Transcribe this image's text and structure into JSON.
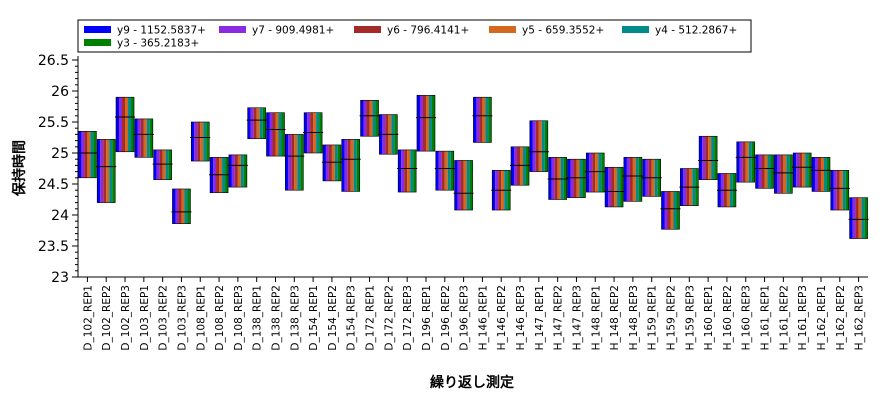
{
  "chart_data": {
    "type": "box",
    "ylabel": "保持時間",
    "xlabel": "繰り返し測定",
    "ylim": [
      23,
      26.5
    ],
    "yticks": [
      23,
      23.5,
      24,
      24.5,
      25,
      25.5,
      26,
      26.5
    ],
    "ytick_labels": [
      "23",
      "23.5",
      "24",
      "24.5",
      "25",
      "25.5",
      "26",
      "26.5"
    ],
    "legend_position": "top",
    "series": [
      {
        "name": "y9 - 1152.5837+",
        "color": "#0000ff"
      },
      {
        "name": "y7 - 909.4981+",
        "color": "#8a2be2"
      },
      {
        "name": "y6 - 796.4141+",
        "color": "#a52a2a"
      },
      {
        "name": "y5 - 659.3552+",
        "color": "#d2691e"
      },
      {
        "name": "y4 - 512.2867+",
        "color": "#008b8b"
      },
      {
        "name": "y3 - 365.2183+",
        "color": "#008000"
      }
    ],
    "categories": [
      {
        "label": "D_102_REP1",
        "low": 24.6,
        "high": 25.35,
        "median": 25.0
      },
      {
        "label": "D_102_REP2",
        "low": 24.2,
        "high": 25.22,
        "median": 24.78
      },
      {
        "label": "D_102_REP3",
        "low": 25.02,
        "high": 25.9,
        "median": 25.58
      },
      {
        "label": "D_103_REP1",
        "low": 24.93,
        "high": 25.55,
        "median": 25.3
      },
      {
        "label": "D_103_REP2",
        "low": 24.57,
        "high": 25.05,
        "median": 24.82
      },
      {
        "label": "D_103_REP3",
        "low": 23.86,
        "high": 24.42,
        "median": 24.05
      },
      {
        "label": "D_108_REP1",
        "low": 24.87,
        "high": 25.5,
        "median": 25.25
      },
      {
        "label": "D_108_REP2",
        "low": 24.36,
        "high": 24.93,
        "median": 24.65
      },
      {
        "label": "D_108_REP3",
        "low": 24.45,
        "high": 24.97,
        "median": 24.8
      },
      {
        "label": "D_138_REP1",
        "low": 25.23,
        "high": 25.73,
        "median": 25.53
      },
      {
        "label": "D_138_REP2",
        "low": 24.95,
        "high": 25.65,
        "median": 25.38
      },
      {
        "label": "D_138_REP3",
        "low": 24.4,
        "high": 25.3,
        "median": 24.95
      },
      {
        "label": "D_154_REP1",
        "low": 25.0,
        "high": 25.65,
        "median": 25.33
      },
      {
        "label": "D_154_REP2",
        "low": 24.55,
        "high": 25.13,
        "median": 24.85
      },
      {
        "label": "D_154_REP3",
        "low": 24.38,
        "high": 25.22,
        "median": 24.9
      },
      {
        "label": "D_172_REP1",
        "low": 25.27,
        "high": 25.85,
        "median": 25.6
      },
      {
        "label": "D_172_REP2",
        "low": 24.98,
        "high": 25.62,
        "median": 25.3
      },
      {
        "label": "D_172_REP3",
        "low": 24.37,
        "high": 25.05,
        "median": 24.75
      },
      {
        "label": "D_196_REP1",
        "low": 25.03,
        "high": 25.93,
        "median": 25.57
      },
      {
        "label": "D_196_REP2",
        "low": 24.4,
        "high": 25.03,
        "median": 24.75
      },
      {
        "label": "D_196_REP3",
        "low": 24.08,
        "high": 24.88,
        "median": 24.35
      },
      {
        "label": "H_146_REP1",
        "low": 25.17,
        "high": 25.9,
        "median": 25.6
      },
      {
        "label": "H_146_REP2",
        "low": 24.08,
        "high": 24.72,
        "median": 24.4
      },
      {
        "label": "H_146_REP3",
        "low": 24.48,
        "high": 25.1,
        "median": 24.8
      },
      {
        "label": "H_147_REP1",
        "low": 24.7,
        "high": 25.52,
        "median": 25.02
      },
      {
        "label": "H_147_REP2",
        "low": 24.25,
        "high": 24.93,
        "median": 24.58
      },
      {
        "label": "H_147_REP3",
        "low": 24.28,
        "high": 24.9,
        "median": 24.6
      },
      {
        "label": "H_148_REP1",
        "low": 24.37,
        "high": 25.0,
        "median": 24.7
      },
      {
        "label": "H_148_REP2",
        "low": 24.13,
        "high": 24.77,
        "median": 24.38
      },
      {
        "label": "H_148_REP3",
        "low": 24.22,
        "high": 24.93,
        "median": 24.63
      },
      {
        "label": "H_159_REP1",
        "low": 24.3,
        "high": 24.9,
        "median": 24.6
      },
      {
        "label": "H_159_REP2",
        "low": 23.77,
        "high": 24.38,
        "median": 24.1
      },
      {
        "label": "H_159_REP3",
        "low": 24.15,
        "high": 24.75,
        "median": 24.45
      },
      {
        "label": "H_160_REP1",
        "low": 24.57,
        "high": 25.27,
        "median": 24.88
      },
      {
        "label": "H_160_REP2",
        "low": 24.13,
        "high": 24.67,
        "median": 24.4
      },
      {
        "label": "H_160_REP3",
        "low": 24.53,
        "high": 25.18,
        "median": 24.93
      },
      {
        "label": "H_161_REP1",
        "low": 24.43,
        "high": 24.97,
        "median": 24.75
      },
      {
        "label": "H_161_REP2",
        "low": 24.35,
        "high": 24.97,
        "median": 24.68
      },
      {
        "label": "H_161_REP3",
        "low": 24.45,
        "high": 25.0,
        "median": 24.77
      },
      {
        "label": "H_162_REP1",
        "low": 24.38,
        "high": 24.93,
        "median": 24.72
      },
      {
        "label": "H_162_REP2",
        "low": 24.08,
        "high": 24.72,
        "median": 24.43
      },
      {
        "label": "H_162_REP3",
        "low": 23.62,
        "high": 24.28,
        "median": 23.93
      }
    ]
  }
}
